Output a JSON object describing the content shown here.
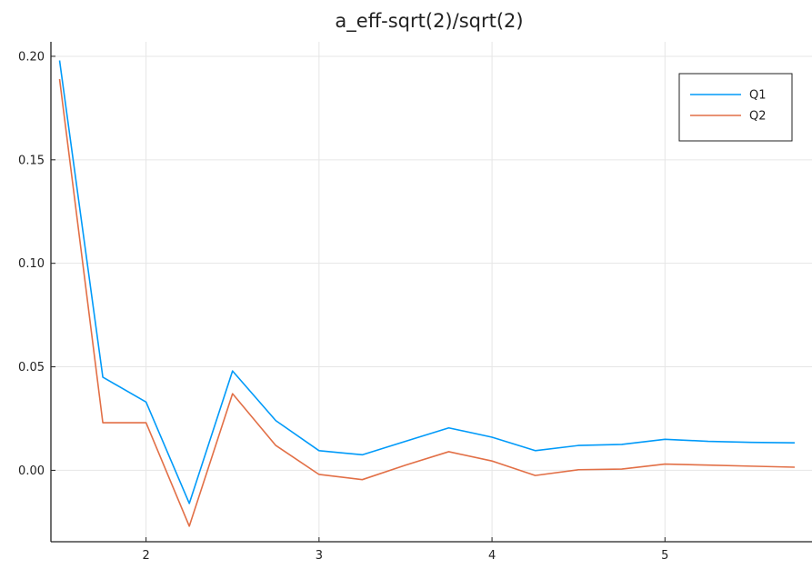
{
  "chart_data": {
    "type": "line",
    "title": "a_eff-sqrt(2)/sqrt(2)",
    "xlabel": "",
    "ylabel": "",
    "xlim": [
      1.45,
      5.85
    ],
    "ylim": [
      -0.0345,
      0.207
    ],
    "x_ticks": [
      2,
      3,
      4,
      5
    ],
    "x_tick_labels": [
      "2",
      "3",
      "4",
      "5"
    ],
    "y_ticks": [
      0.0,
      0.05,
      0.1,
      0.15,
      0.2
    ],
    "y_tick_labels": [
      "0.00",
      "0.05",
      "0.10",
      "0.15",
      "0.20"
    ],
    "grid": true,
    "legend_position": "top-right",
    "x": [
      1.5,
      1.75,
      2.0,
      2.25,
      2.5,
      2.75,
      3.0,
      3.25,
      3.5,
      3.75,
      4.0,
      4.25,
      4.5,
      4.75,
      5.0,
      5.25,
      5.5,
      5.75
    ],
    "series": [
      {
        "name": "Q1",
        "color": "#009af9",
        "values": [
          0.198,
          0.045,
          0.033,
          -0.016,
          0.048,
          0.024,
          0.0095,
          0.0075,
          0.014,
          0.0205,
          0.016,
          0.0095,
          0.012,
          0.0125,
          0.015,
          0.014,
          0.0135,
          0.0133
        ]
      },
      {
        "name": "Q2",
        "color": "#e26f46",
        "values": [
          0.189,
          0.023,
          0.023,
          -0.027,
          0.037,
          0.012,
          -0.002,
          -0.0045,
          0.0025,
          0.009,
          0.0045,
          -0.0025,
          0.0003,
          0.0006,
          0.003,
          0.0025,
          0.002,
          0.0015
        ]
      }
    ]
  }
}
